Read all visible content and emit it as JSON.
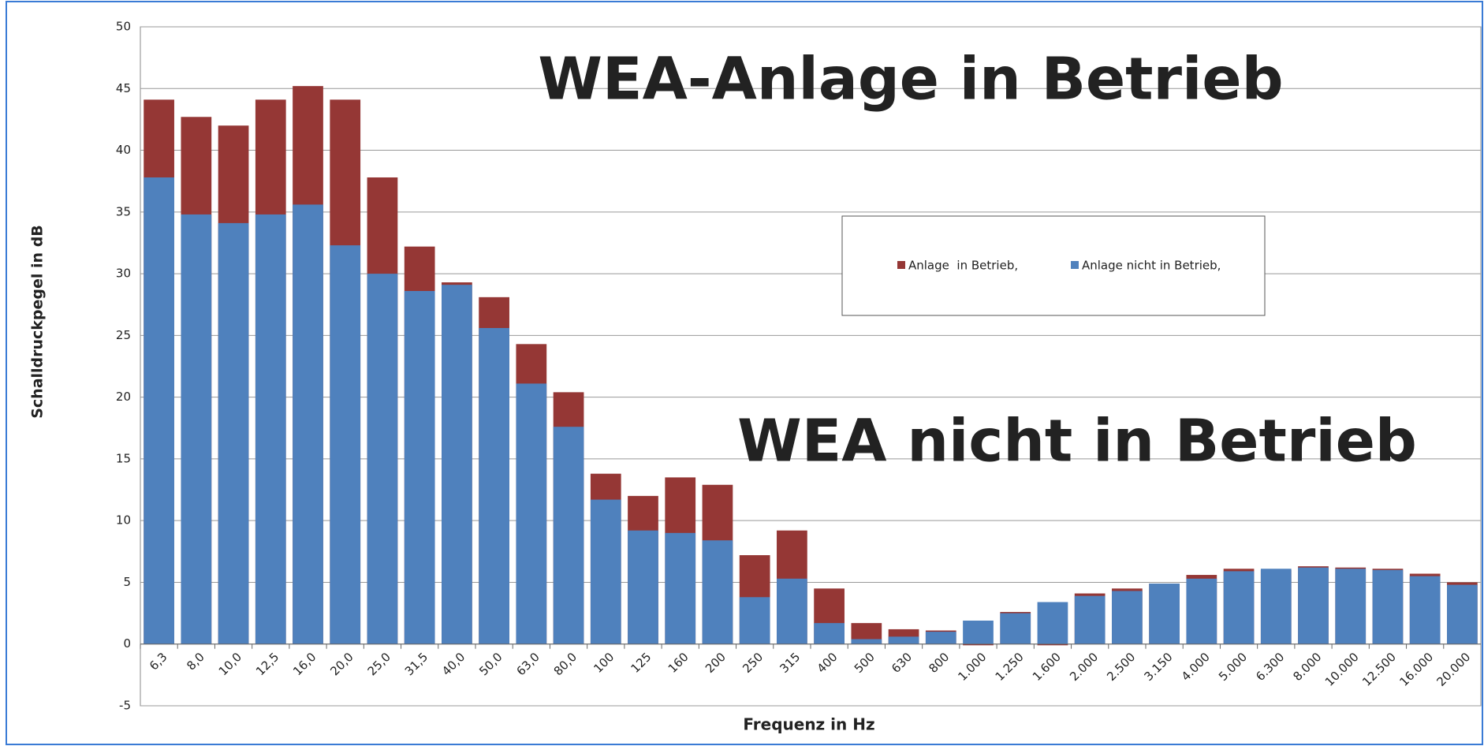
{
  "chart_data": {
    "type": "bar",
    "annotations": [
      "WEA-Anlage in Betrieb",
      "WEA nicht in Betrieb"
    ],
    "annotation_colors": [
      "#8b4513",
      "#4472c4"
    ],
    "xlabel": "Frequenz in Hz",
    "ylabel": "Schalldruckpegel in dB",
    "categories": [
      "6,3",
      "8,0",
      "10,0",
      "12,5",
      "16,0",
      "20,0",
      "25,0",
      "31,5",
      "40,0",
      "50,0",
      "63,0",
      "80,0",
      "100",
      "125",
      "160",
      "200",
      "250",
      "315",
      "400",
      "500",
      "630",
      "800",
      "1.000",
      "1.250",
      "1.600",
      "2.000",
      "2.500",
      "3.150",
      "4.000",
      "5.000",
      "6.300",
      "8.000",
      "10.000",
      "12.500",
      "16.000",
      "20.000"
    ],
    "series": [
      {
        "name": "Anlage  in Betrieb,",
        "color": "#953735",
        "values": [
          44.1,
          42.7,
          42.0,
          44.1,
          45.2,
          44.1,
          37.8,
          32.2,
          29.3,
          28.1,
          24.3,
          20.4,
          13.8,
          12.0,
          13.5,
          12.9,
          7.2,
          9.2,
          4.5,
          1.7,
          1.2,
          1.1,
          -0.1,
          2.6,
          -0.1,
          4.1,
          4.5,
          4.9,
          5.6,
          6.1,
          6.0,
          6.3,
          6.2,
          6.1,
          5.7,
          5.0
        ]
      },
      {
        "name": "Anlage nicht in Betrieb,",
        "color": "#4f81bd",
        "values": [
          37.8,
          34.8,
          34.1,
          34.8,
          35.6,
          32.3,
          30.0,
          28.6,
          29.1,
          25.6,
          21.1,
          17.6,
          11.7,
          9.2,
          9.0,
          8.4,
          3.8,
          5.3,
          1.7,
          0.4,
          0.6,
          1.0,
          1.9,
          2.5,
          3.4,
          3.9,
          4.3,
          4.9,
          5.3,
          5.9,
          6.1,
          6.2,
          6.1,
          6.0,
          5.5,
          4.8
        ]
      }
    ],
    "ylim": [
      -5,
      50
    ],
    "yticks": [
      -5,
      0,
      5,
      10,
      15,
      20,
      25,
      30,
      35,
      40,
      45,
      50
    ],
    "grid": true
  }
}
